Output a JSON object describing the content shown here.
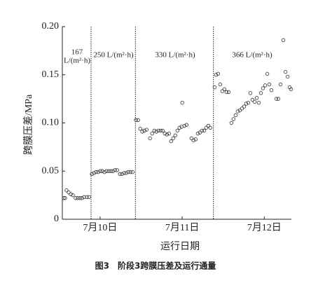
{
  "chart_data": {
    "type": "scatter",
    "caption": "图3　阶段3跨膜压差及运行通量",
    "x_label": "运行日期",
    "y_label": "跨膜压差/MPa",
    "annotations": [
      "167",
      "L/(m²·h)",
      "250 L/(m²·h)",
      "330 L/(m²·h)",
      "366 L/(m²·h)"
    ],
    "dividers": [
      9.89,
      10.43,
      11.38
    ],
    "color": "#333333",
    "xlim": [
      9.54,
      12.33
    ],
    "xticks": [
      {
        "value": 10,
        "label": "7月10日"
      },
      {
        "value": 11,
        "label": "7月11日"
      },
      {
        "value": 12,
        "label": "7月12日"
      }
    ],
    "ylim": [
      0,
      0.2
    ],
    "yticks": [
      0,
      0.05,
      {
        "value": 0.1,
        "label": "0.10"
      },
      0.15,
      {
        "value": 0.2,
        "label": "0.20"
      }
    ],
    "x": [
      9.557,
      9.574,
      9.591,
      9.617,
      9.643,
      9.668,
      9.702,
      9.728,
      9.754,
      9.779,
      9.805,
      9.839,
      9.865,
      9.899,
      9.925,
      9.95,
      9.976,
      10.002,
      10.027,
      10.053,
      10.078,
      10.104,
      10.13,
      10.155,
      10.181,
      10.207,
      10.241,
      10.266,
      10.292,
      10.318,
      10.343,
      10.369,
      10.395,
      10.437,
      10.463,
      10.489,
      10.514,
      10.54,
      10.566,
      10.608,
      10.634,
      10.66,
      10.685,
      10.711,
      10.737,
      10.762,
      10.788,
      10.814,
      10.839,
      10.865,
      10.89,
      10.916,
      10.942,
      10.967,
      10.993,
      11.001,
      11.027,
      11.053,
      11.113,
      11.138,
      11.164,
      11.19,
      11.215,
      11.241,
      11.266,
      11.292,
      11.318,
      11.343,
      11.395,
      11.412,
      11.437,
      11.463,
      11.489,
      11.514,
      11.54,
      11.566,
      11.6,
      11.625,
      11.651,
      11.677,
      11.702,
      11.728,
      11.754,
      11.779,
      11.805,
      11.831,
      11.856,
      11.882,
      11.908,
      11.933,
      11.959,
      11.984,
      12.01,
      12.036,
      12.061,
      12.087,
      12.147,
      12.172,
      12.198,
      12.232,
      12.258,
      12.284,
      12.309,
      12.326
    ],
    "values": [
      0.022,
      0.022,
      0.03,
      0.028,
      0.026,
      0.025,
      0.022,
      0.022,
      0.022,
      0.022,
      0.023,
      0.023,
      0.023,
      0.047,
      0.048,
      0.049,
      0.049,
      0.05,
      0.05,
      0.049,
      0.05,
      0.05,
      0.05,
      0.05,
      0.051,
      0.051,
      0.047,
      0.047,
      0.048,
      0.048,
      0.049,
      0.049,
      0.049,
      0.103,
      0.103,
      0.094,
      0.091,
      0.092,
      0.093,
      0.084,
      0.089,
      0.092,
      0.091,
      0.092,
      0.092,
      0.092,
      0.089,
      0.088,
      0.089,
      0.081,
      0.084,
      0.087,
      0.092,
      0.095,
      0.096,
      0.121,
      0.097,
      0.098,
      0.084,
      0.082,
      0.083,
      0.089,
      0.09,
      0.092,
      0.092,
      0.095,
      0.097,
      0.095,
      0.137,
      0.15,
      0.151,
      0.14,
      0.133,
      0.135,
      0.132,
      0.132,
      0.1,
      0.104,
      0.108,
      0.112,
      0.113,
      0.115,
      0.117,
      0.12,
      0.121,
      0.131,
      0.124,
      0.122,
      0.126,
      0.121,
      0.131,
      0.136,
      0.139,
      0.151,
      0.14,
      0.134,
      0.125,
      0.125,
      0.14,
      0.186,
      0.153,
      0.148,
      0.137,
      0.135
    ]
  }
}
